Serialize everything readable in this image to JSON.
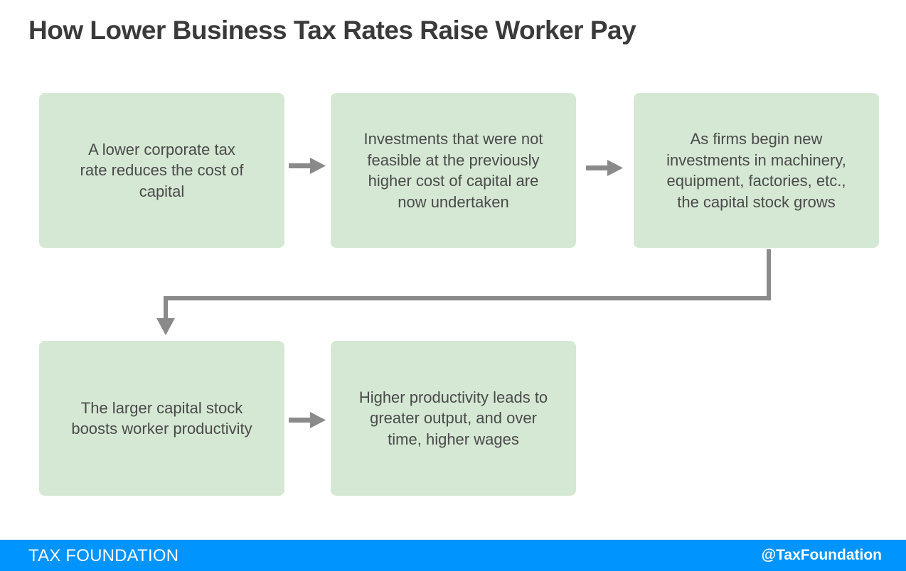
{
  "title": "How Lower Business Tax Rates Raise Worker Pay",
  "steps": [
    {
      "text": "A lower corporate tax rate reduces the cost of capital"
    },
    {
      "text": "Investments that were not feasible at the previously higher cost of capital are now undertaken"
    },
    {
      "text": "As firms begin new investments in machinery, equipment, factories, etc., the capital stock grows"
    },
    {
      "text": "The larger capital stock boosts worker productivity"
    },
    {
      "text": "Higher productivity leads to greater output, and over time, higher wages"
    }
  ],
  "footer": {
    "org": "TAX FOUNDATION",
    "handle": "@TaxFoundation"
  },
  "colors": {
    "box_fill": "#d5e8d4",
    "arrow": "#8a8a8a",
    "footer_bg": "#0094ff",
    "title_text": "#3a3a3a"
  }
}
